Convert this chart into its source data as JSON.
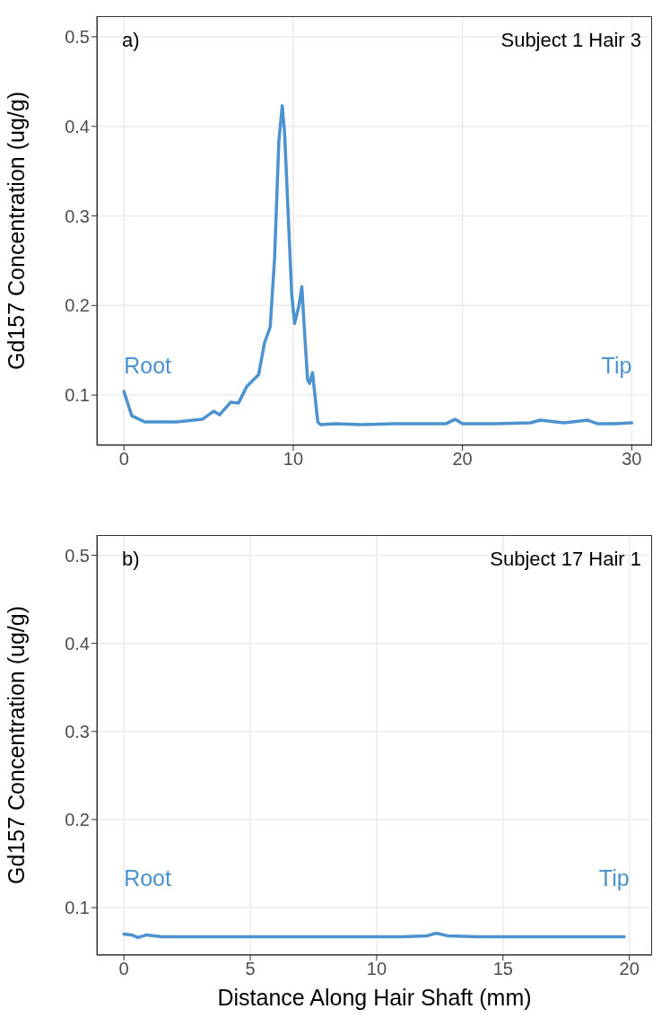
{
  "chart_data": [
    {
      "type": "line",
      "title": "Subject 1 Hair 3",
      "ylabel": "Gd157 Concentration (ug/g)",
      "annotations": [
        "a)",
        "Root",
        "Tip"
      ],
      "xlim": [
        -1.6,
        31.2
      ],
      "ylim": [
        0.044,
        0.523
      ],
      "xticks": [
        0,
        10,
        20,
        30
      ],
      "yticks": [
        0.1,
        0.2,
        0.3,
        0.4,
        0.5
      ],
      "grid": true,
      "line_style": "solid",
      "marker": "none",
      "series": [
        {
          "color": "#4b92cf",
          "x": [
            0,
            0.46,
            0.8,
            1.23,
            3.1,
            4.63,
            5.3,
            5.65,
            6.3,
            6.76,
            7.27,
            7.96,
            8.3,
            8.64,
            8.9,
            9.15,
            9.35,
            9.49,
            9.74,
            9.91,
            10.08,
            10.34,
            10.51,
            10.68,
            10.85,
            10.97,
            11.14,
            11.45,
            11.62,
            12.5,
            14,
            16,
            17,
            19,
            19.57,
            20,
            22,
            24,
            24.6,
            26,
            27.4,
            28,
            29,
            30
          ],
          "values": [
            0.104,
            0.077,
            0.074,
            0.07,
            0.07,
            0.073,
            0.082,
            0.078,
            0.092,
            0.091,
            0.11,
            0.123,
            0.158,
            0.176,
            0.253,
            0.383,
            0.423,
            0.393,
            0.286,
            0.213,
            0.18,
            0.2,
            0.221,
            0.167,
            0.117,
            0.113,
            0.125,
            0.07,
            0.067,
            0.068,
            0.067,
            0.068,
            0.068,
            0.068,
            0.073,
            0.068,
            0.068,
            0.069,
            0.072,
            0.069,
            0.072,
            0.068,
            0.068,
            0.069
          ]
        }
      ]
    },
    {
      "type": "line",
      "title": "Subject 17 Hair 1",
      "xlabel": "Distance Along Hair Shaft (mm)",
      "ylabel": "Gd157 Concentration (ug/g)",
      "annotations": [
        "b)",
        "Root",
        "Tip"
      ],
      "xlim": [
        -1.07,
        20.9
      ],
      "ylim": [
        0.046,
        0.523
      ],
      "xticks": [
        0,
        5,
        10,
        15,
        20
      ],
      "yticks": [
        0.1,
        0.2,
        0.3,
        0.4,
        0.5
      ],
      "grid": true,
      "line_style": "solid",
      "marker": "none",
      "series": [
        {
          "color": "#4b92cf",
          "x": [
            0,
            0.3,
            0.55,
            0.9,
            1.5,
            3,
            5,
            7,
            9,
            11,
            12,
            12.36,
            12.8,
            14,
            16,
            18,
            19.8
          ],
          "values": [
            0.07,
            0.069,
            0.066,
            0.069,
            0.067,
            0.067,
            0.067,
            0.067,
            0.067,
            0.067,
            0.068,
            0.071,
            0.068,
            0.067,
            0.067,
            0.067,
            0.067
          ]
        }
      ]
    }
  ]
}
